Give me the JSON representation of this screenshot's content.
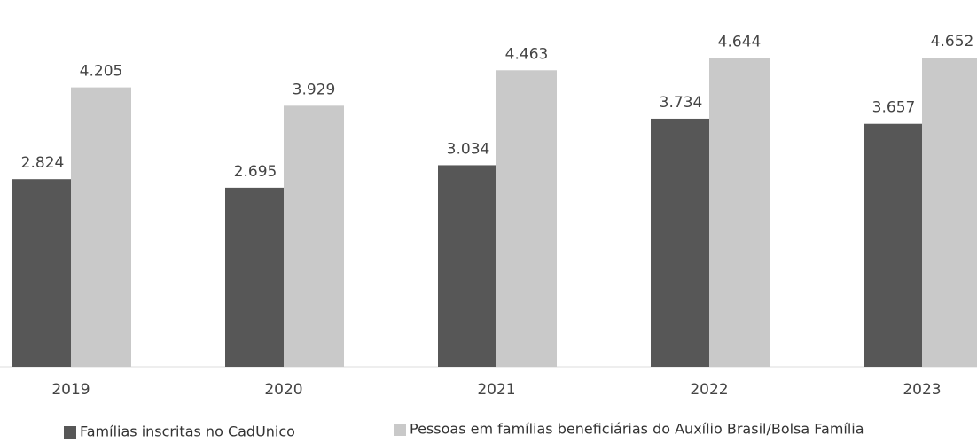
{
  "chart_data": {
    "type": "bar",
    "categories": [
      "2019",
      "2020",
      "2021",
      "2022",
      "2023"
    ],
    "series": [
      {
        "name": "Famílias inscritas no CadUnico",
        "color": "#575757",
        "values": [
          2.824,
          2.695,
          3.034,
          3.734,
          3.657
        ]
      },
      {
        "name": "Pessoas em famílias beneficiárias do Auxílio Brasil/Bolsa Família",
        "color": "#c9c9c9",
        "values": [
          4.205,
          3.929,
          4.463,
          4.644,
          4.652
        ]
      }
    ]
  }
}
